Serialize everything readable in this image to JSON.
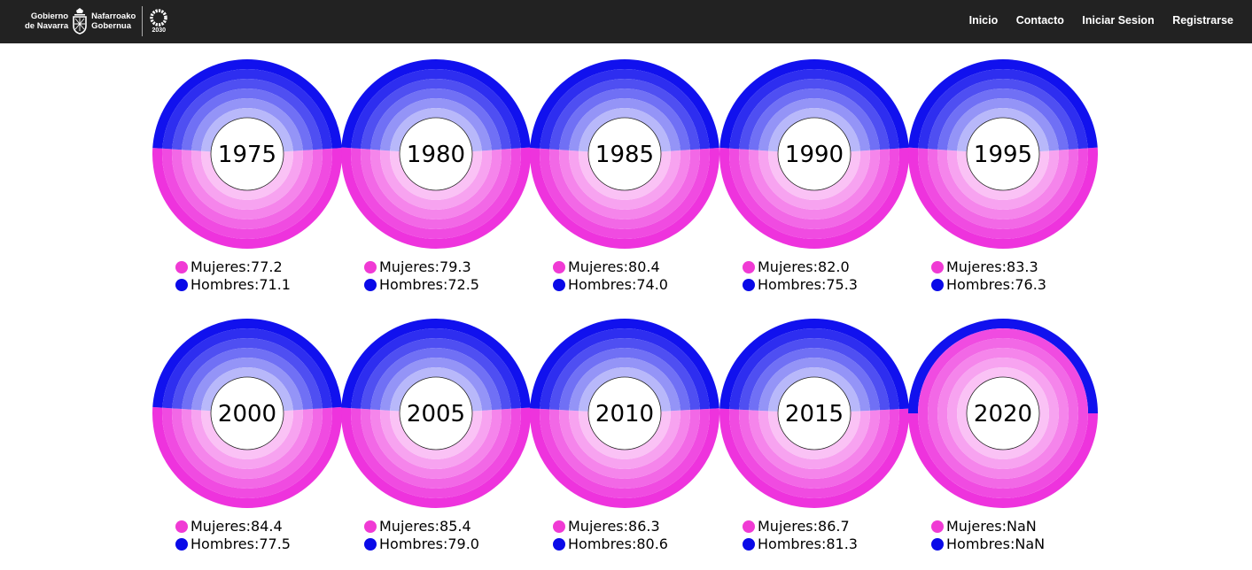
{
  "header": {
    "logo_left_line1": "Gobierno",
    "logo_left_line2": "de Navarra",
    "logo_right_line1": "Nafarroako",
    "logo_right_line2": "Gobernua",
    "agenda_label": "2030",
    "nav": [
      "Inicio",
      "Contacto",
      "Iniciar Sesion",
      "Registrarse"
    ]
  },
  "colors": {
    "women": "#ee33dd",
    "men": "#1111ee",
    "women_dot": "#f03ad4",
    "men_dot": "#0a0ae8",
    "header_bg": "#222222"
  },
  "chart_data": {
    "type": "pie",
    "series_labels": {
      "women": "Mujeres",
      "men": "Hombres"
    },
    "charts": [
      {
        "year": "1975",
        "women": 77.2,
        "men": 71.1,
        "women_label": "Mujeres:77.2",
        "men_label": "Hombres:71.1"
      },
      {
        "year": "1980",
        "women": 79.3,
        "men": 72.5,
        "women_label": "Mujeres:79.3",
        "men_label": "Hombres:72.5"
      },
      {
        "year": "1985",
        "women": 80.4,
        "men": 74.0,
        "women_label": "Mujeres:80.4",
        "men_label": "Hombres:74.0"
      },
      {
        "year": "1990",
        "women": 82.0,
        "men": 75.3,
        "women_label": "Mujeres:82.0",
        "men_label": "Hombres:75.3"
      },
      {
        "year": "1995",
        "women": 83.3,
        "men": 76.3,
        "women_label": "Mujeres:83.3",
        "men_label": "Hombres:76.3"
      },
      {
        "year": "2000",
        "women": 84.4,
        "men": 77.5,
        "women_label": "Mujeres:84.4",
        "men_label": "Hombres:77.5"
      },
      {
        "year": "2005",
        "women": 85.4,
        "men": 79.0,
        "women_label": "Mujeres:85.4",
        "men_label": "Hombres:79.0"
      },
      {
        "year": "2010",
        "women": 86.3,
        "men": 80.6,
        "women_label": "Mujeres:86.3",
        "men_label": "Hombres:80.6"
      },
      {
        "year": "2015",
        "women": 86.7,
        "men": 81.3,
        "women_label": "Mujeres:86.7",
        "men_label": "Hombres:81.3"
      },
      {
        "year": "2020",
        "women": null,
        "men": null,
        "women_label": "Mujeres:NaN",
        "men_label": "Hombres:NaN"
      }
    ]
  }
}
